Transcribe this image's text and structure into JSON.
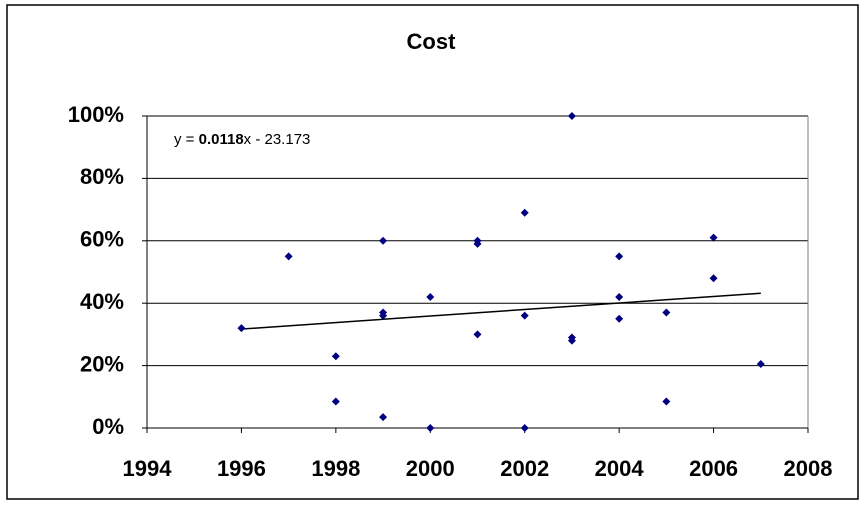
{
  "chart_data": {
    "type": "scatter",
    "title": "Cost",
    "x": [
      1996,
      1997,
      1998,
      1998,
      1999,
      1999,
      1999,
      1999,
      2000,
      2000,
      2001,
      2001,
      2001,
      2002,
      2002,
      2002,
      2003,
      2003,
      2003,
      2004,
      2004,
      2004,
      2005,
      2005,
      2006,
      2006,
      2007
    ],
    "values": [
      32,
      55,
      23,
      8.5,
      60,
      37,
      36,
      3.5,
      42,
      0,
      60,
      59,
      30,
      69,
      36,
      0,
      100,
      29,
      28,
      55,
      42,
      35,
      37,
      8.5,
      61,
      48,
      20.5
    ],
    "color": "#000080",
    "xlim": [
      1994,
      2008
    ],
    "xticks": [
      1994,
      1996,
      1998,
      2000,
      2002,
      2004,
      2006,
      2008
    ],
    "ylim": [
      0,
      100
    ],
    "yticks": [
      {
        "value": 0,
        "label": "0%"
      },
      {
        "value": 20,
        "label": "20%"
      },
      {
        "value": 40,
        "label": "40%"
      },
      {
        "value": 60,
        "label": "60%"
      },
      {
        "value": 80,
        "label": "80%"
      },
      {
        "value": 100,
        "label": "100%"
      }
    ],
    "grid": true,
    "trendline": true,
    "trendline_label": [
      "y = ",
      "0.0118",
      "x - 23.173"
    ]
  }
}
